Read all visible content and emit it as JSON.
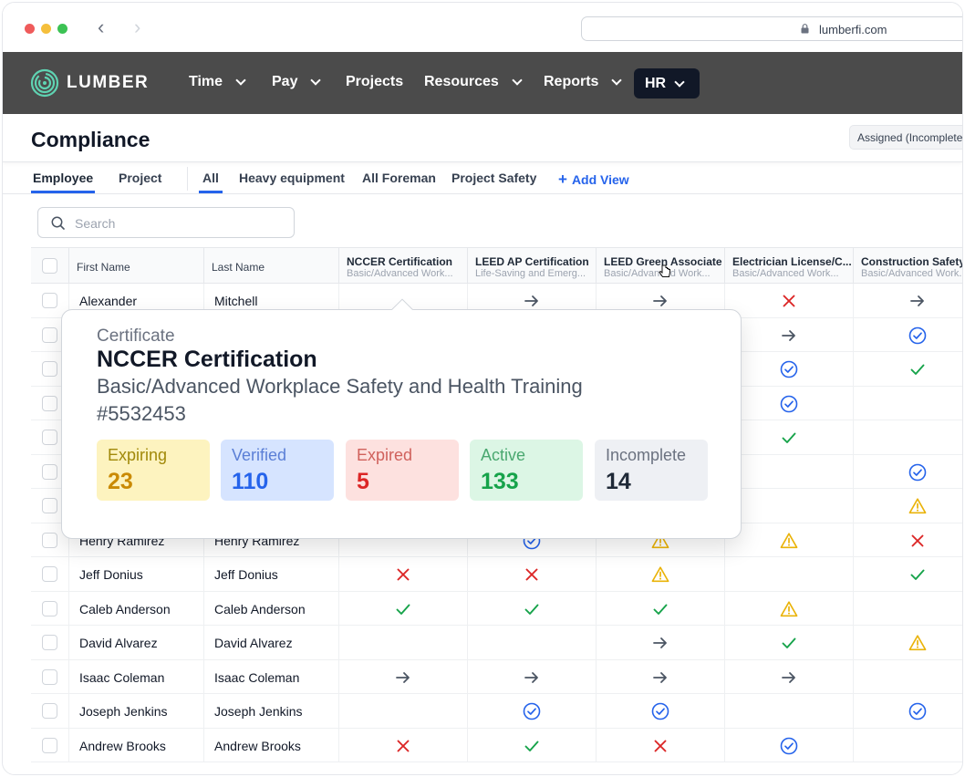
{
  "browser": {
    "url": "lumberfi.com"
  },
  "nav": {
    "brand": "LUMBER",
    "items": [
      {
        "label": "Time",
        "dropdown": true
      },
      {
        "label": "Pay",
        "dropdown": true
      },
      {
        "label": "Projects",
        "dropdown": false
      },
      {
        "label": "Resources",
        "dropdown": true
      },
      {
        "label": "Reports",
        "dropdown": true
      }
    ],
    "active": {
      "label": "HR"
    }
  },
  "page": {
    "title": "Compliance",
    "assigned_badge": "Assigned (Incomplete)"
  },
  "tabs": {
    "scope": [
      "Employee",
      "Project"
    ],
    "views": [
      "All",
      "Heavy equipment",
      "All Foreman",
      "Project Safety"
    ],
    "add_view": "Add View"
  },
  "search": {
    "placeholder": "Search"
  },
  "table": {
    "columns": [
      {
        "name": "First Name"
      },
      {
        "name": "Last Name"
      },
      {
        "name": "NCCER Certification",
        "sub": "Basic/Advanced Work..."
      },
      {
        "name": "LEED AP Certification",
        "sub": "Life-Saving and Emerg..."
      },
      {
        "name": "LEED Green Associate",
        "sub": "Basic/Advanced Work..."
      },
      {
        "name": "Electrician License/C...",
        "sub": "Basic/Advanced Work..."
      },
      {
        "name": "Construction Safety a...",
        "sub": "Basic/Advanced Work..."
      }
    ],
    "rows": [
      {
        "first": "Alexander",
        "last": "Mitchell",
        "status": [
          "",
          "arrow",
          "arrow",
          "x",
          "arrow"
        ]
      },
      {
        "first": "",
        "last": "",
        "status": [
          "",
          "",
          "",
          "arrow",
          "verified"
        ]
      },
      {
        "first": "",
        "last": "",
        "status": [
          "",
          "",
          "",
          "verified",
          "check"
        ]
      },
      {
        "first": "",
        "last": "",
        "status": [
          "",
          "",
          "",
          "verified",
          ""
        ]
      },
      {
        "first": "",
        "last": "",
        "status": [
          "",
          "",
          "",
          "check",
          ""
        ]
      },
      {
        "first": "",
        "last": "",
        "status": [
          "",
          "",
          "",
          "",
          "verified"
        ]
      },
      {
        "first": "",
        "last": "",
        "status": [
          "",
          "",
          "",
          "",
          "warn"
        ]
      },
      {
        "first": "Henry Ramirez",
        "last": "Henry Ramirez",
        "status": [
          "",
          "verified",
          "warn",
          "warn",
          "x"
        ]
      },
      {
        "first": "Jeff Donius",
        "last": "Jeff Donius",
        "status": [
          "x",
          "x",
          "warn",
          "",
          "check"
        ]
      },
      {
        "first": "Caleb Anderson",
        "last": "Caleb Anderson",
        "status": [
          "check",
          "check",
          "check",
          "warn",
          ""
        ]
      },
      {
        "first": "David Alvarez",
        "last": "David Alvarez",
        "status": [
          "",
          "",
          "arrow",
          "check",
          "warn"
        ]
      },
      {
        "first": "Isaac Coleman",
        "last": "Isaac Coleman",
        "status": [
          "arrow",
          "arrow",
          "arrow",
          "arrow",
          ""
        ]
      },
      {
        "first": "Joseph Jenkins",
        "last": "Joseph Jenkins",
        "status": [
          "",
          "verified",
          "verified",
          "",
          "verified"
        ]
      },
      {
        "first": "Andrew Brooks",
        "last": "Andrew Brooks",
        "status": [
          "x",
          "check",
          "x",
          "verified",
          ""
        ]
      }
    ]
  },
  "popover": {
    "label": "Certificate",
    "title": "NCCER Certification",
    "subtitle": "Basic/Advanced Workplace Safety and Health Training",
    "number": "#5532453",
    "stats": [
      {
        "label": "Expiring",
        "value": "23",
        "bg": "#fdf3bf",
        "fg": "#ca8a04",
        "lbl": "#a1890a"
      },
      {
        "label": "Verified",
        "value": "110",
        "bg": "#d6e4ff",
        "fg": "#2563eb",
        "lbl": "#5b7fd6"
      },
      {
        "label": "Expired",
        "value": "5",
        "bg": "#fde1df",
        "fg": "#dc2626",
        "lbl": "#d0615c"
      },
      {
        "label": "Active",
        "value": "133",
        "bg": "#dcf6e5",
        "fg": "#16a34a",
        "lbl": "#4aa870"
      },
      {
        "label": "Incomplete",
        "value": "14",
        "bg": "#eef0f4",
        "fg": "#1f2937",
        "lbl": "#6b7280"
      }
    ]
  },
  "colors": {
    "accent": "#2563eb",
    "nav_bg": "#4b4b4b",
    "x": "#dc2626",
    "check": "#16a34a",
    "warn": "#eab308",
    "arrow": "#4b5563"
  }
}
